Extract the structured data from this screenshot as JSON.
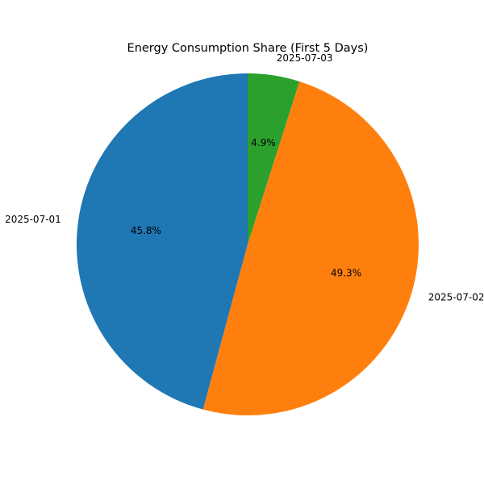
{
  "chart_data": {
    "type": "pie",
    "title": "Energy Consumption Share (First 5 Days)",
    "slices": [
      {
        "label": "2025-07-01",
        "percent": 45.8,
        "percent_label": "45.8%",
        "color": "#1f77b4"
      },
      {
        "label": "2025-07-02",
        "percent": 49.3,
        "percent_label": "49.3%",
        "color": "#ff7f0e"
      },
      {
        "label": "2025-07-03",
        "percent": 4.9,
        "percent_label": "4.9%",
        "color": "#2ca02c"
      }
    ],
    "start_angle": "top",
    "direction": "counterclockwise",
    "legend": "none"
  }
}
